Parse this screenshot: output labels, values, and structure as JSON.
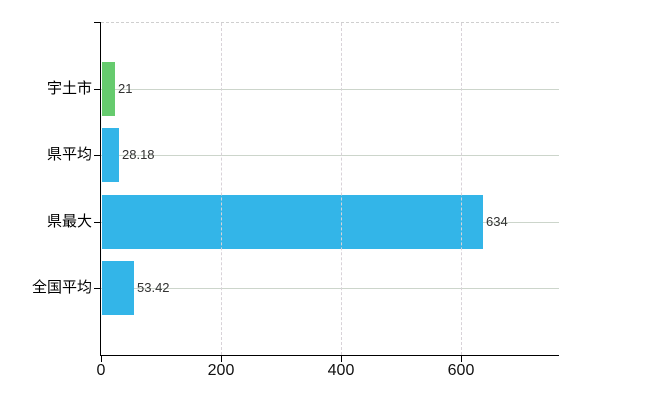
{
  "chart_data": {
    "type": "bar",
    "orientation": "horizontal",
    "title": "",
    "xlabel": "",
    "ylabel": "",
    "categories": [
      "宇土市",
      "県平均",
      "県最大",
      "全国平均"
    ],
    "series": [
      {
        "name": "values",
        "values": [
          21,
          28.18,
          634,
          53.42
        ]
      }
    ],
    "value_labels": [
      "21",
      "28.18",
      "634",
      "53.42"
    ],
    "bar_colors": [
      "#66cb6e",
      "#33b5e8",
      "#33b5e8",
      "#33b5e8"
    ],
    "x_ticks": [
      "0",
      "200",
      "400",
      "600"
    ],
    "x_tick_values": [
      0,
      200,
      400,
      600
    ],
    "xlim": [
      0,
      763
    ],
    "grid": true,
    "legend_position": "none"
  },
  "colors": {
    "background": "#ffffff",
    "axis": "#000000",
    "gridline_horizontal": "#ccd5cb",
    "gridline_vertical": "#d8d2d8",
    "plot_top_border": "#cfcfcf",
    "value_label_text": "#333333",
    "category_label_text": "#000000",
    "tick_label_text": "#111111"
  }
}
